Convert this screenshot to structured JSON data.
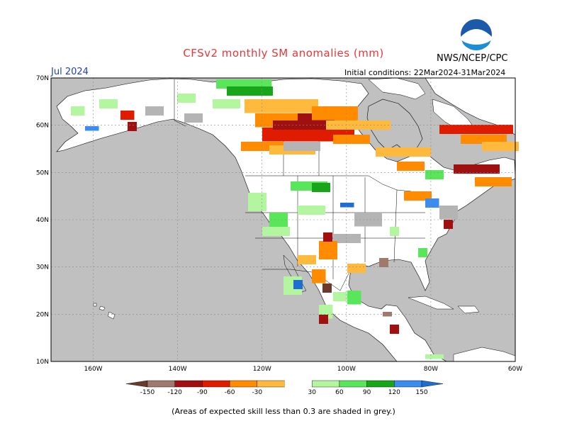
{
  "header": {
    "title": "CFSv2 monthly SM anomalies (mm)",
    "agency": "NWS/NCEP/CPC",
    "valid_month": "Jul 2024",
    "initial_conditions": "Initial conditions: 22Mar2024-31Mar2024",
    "logo_text": "NOAA"
  },
  "map": {
    "lon_ticks": [
      "160W",
      "140W",
      "120W",
      "100W",
      "80W",
      "60W"
    ],
    "lat_ticks": [
      "70N",
      "60N",
      "50N",
      "40N",
      "30N",
      "20N",
      "10N"
    ],
    "lon_range": [
      -170,
      -60
    ],
    "lat_range": [
      10,
      70
    ],
    "colors": {
      "ocean": "#c0c0c0",
      "land": "#ffffff",
      "low_skill": "#b4b4b4"
    }
  },
  "colorbar": {
    "labels": [
      "-150",
      "-120",
      "-90",
      "-60",
      "-30",
      "30",
      "60",
      "90",
      "120",
      "150"
    ],
    "colors": [
      "#6b3a2a",
      "#a0786c",
      "#a01010",
      "#e01c00",
      "#ff8c00",
      "#ffb93d",
      "#ffffff",
      "#b4f5a0",
      "#5ae65a",
      "#19a519",
      "#3c8cf0",
      "#1e6ed2"
    ]
  },
  "footer": {
    "skill_note": "(Areas of expected skill less than 0.3 are shaded in grey.)"
  }
}
